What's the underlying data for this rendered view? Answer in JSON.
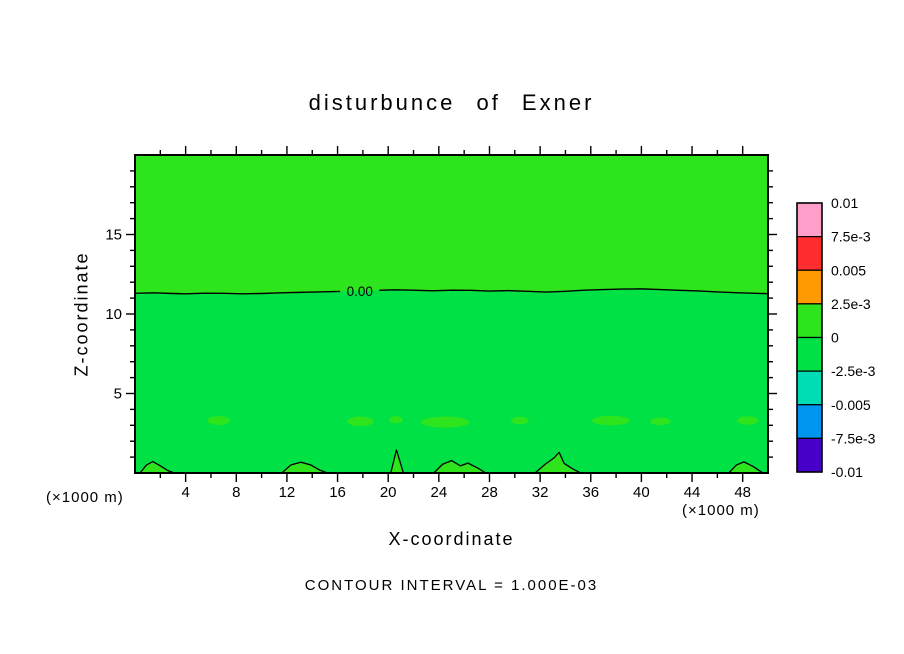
{
  "title": "disturbunce of Exner",
  "axes": {
    "y_label": "Z-coordinate",
    "x_label": "X-coordinate",
    "x_unit_left": "(×1000 m)",
    "x_unit_right": "(×1000 m)"
  },
  "footnote": "CONTOUR INTERVAL = 1.000E-03",
  "chart_data": {
    "type": "contour",
    "title": "disturbunce of Exner",
    "xlabel": "X-coordinate",
    "ylabel": "Z-coordinate",
    "x_unit": "×1000 m",
    "xlim": [
      0,
      50
    ],
    "ylim": [
      0,
      20
    ],
    "x_tick_labels": [
      4,
      8,
      12,
      16,
      20,
      24,
      28,
      32,
      36,
      40,
      44,
      48
    ],
    "x_tick_minor_step": 2,
    "x_tick_major_step": 4,
    "y_tick_labels": [
      5,
      10,
      15
    ],
    "y_tick_minor_step": 1,
    "y_tick_major_step": 5,
    "contour_interval": "1.000E-03",
    "zero_contour_label": "0.00",
    "grid": false,
    "fill": {
      "lower_color": "#00e146",
      "upper_color": "#2ee41c",
      "patch_color": "#2ee41c"
    },
    "zero_contour_main": [
      [
        0,
        11.3
      ],
      [
        1.5,
        11.33
      ],
      [
        3,
        11.29
      ],
      [
        4,
        11.27
      ],
      [
        5.5,
        11.31
      ],
      [
        7,
        11.3
      ],
      [
        8.5,
        11.27
      ],
      [
        10,
        11.29
      ],
      [
        11.5,
        11.33
      ],
      [
        13,
        11.36
      ],
      [
        14.5,
        11.39
      ],
      [
        16.2,
        11.42
      ],
      [
        19.3,
        11.49
      ],
      [
        20.5,
        11.52
      ],
      [
        22,
        11.5
      ],
      [
        23.5,
        11.46
      ],
      [
        25,
        11.5
      ],
      [
        26.5,
        11.49
      ],
      [
        28,
        11.44
      ],
      [
        29.5,
        11.47
      ],
      [
        31,
        11.43
      ],
      [
        32.5,
        11.38
      ],
      [
        34,
        11.43
      ],
      [
        35.5,
        11.5
      ],
      [
        37,
        11.54
      ],
      [
        38.5,
        11.57
      ],
      [
        40,
        11.58
      ],
      [
        41.5,
        11.54
      ],
      [
        43,
        11.49
      ],
      [
        44.5,
        11.45
      ],
      [
        46,
        11.39
      ],
      [
        47.5,
        11.34
      ],
      [
        49,
        11.3
      ],
      [
        50,
        11.28
      ]
    ],
    "label_gap": [
      16.2,
      19.3
    ],
    "label_anchor": {
      "x": 17.75,
      "z": 11.45
    },
    "surface_contours": [
      [
        [
          0.4,
          0
        ],
        [
          0.9,
          0.5
        ],
        [
          1.4,
          0.72
        ],
        [
          2.0,
          0.45
        ],
        [
          2.6,
          0.15
        ],
        [
          3.1,
          0
        ]
      ],
      [
        [
          11.6,
          0
        ],
        [
          12.3,
          0.5
        ],
        [
          13.1,
          0.68
        ],
        [
          13.9,
          0.5
        ],
        [
          14.6,
          0.18
        ],
        [
          15.2,
          0
        ]
      ],
      [
        [
          20.2,
          0
        ],
        [
          20.45,
          0.8
        ],
        [
          20.65,
          1.45
        ],
        [
          20.9,
          0.8
        ],
        [
          21.2,
          0
        ]
      ],
      [
        [
          23.6,
          0
        ],
        [
          24.3,
          0.55
        ],
        [
          25.0,
          0.78
        ],
        [
          25.7,
          0.45
        ],
        [
          26.3,
          0.62
        ],
        [
          27.1,
          0.3
        ],
        [
          27.7,
          0
        ]
      ],
      [
        [
          31.6,
          0
        ],
        [
          32.4,
          0.55
        ],
        [
          33.1,
          0.95
        ],
        [
          33.5,
          1.3
        ],
        [
          33.9,
          0.6
        ],
        [
          34.6,
          0.25
        ],
        [
          35.2,
          0
        ]
      ],
      [
        [
          46.9,
          0
        ],
        [
          47.5,
          0.5
        ],
        [
          48.1,
          0.7
        ],
        [
          48.8,
          0.42
        ],
        [
          49.6,
          0
        ]
      ]
    ],
    "positive_patches": [
      [
        6.6,
        3.3,
        0.9,
        0.28
      ],
      [
        17.8,
        3.25,
        1.05,
        0.3
      ],
      [
        20.6,
        3.35,
        0.55,
        0.22
      ],
      [
        24.5,
        3.2,
        1.9,
        0.35
      ],
      [
        30.4,
        3.3,
        0.7,
        0.24
      ],
      [
        37.6,
        3.3,
        1.5,
        0.3
      ],
      [
        41.5,
        3.25,
        0.8,
        0.24
      ],
      [
        48.4,
        3.3,
        0.85,
        0.26
      ]
    ],
    "colorbar": {
      "value_range": [
        -0.01,
        0.01
      ],
      "levels": [
        0.01,
        0.0075,
        0.005,
        0.0025,
        0,
        -0.0025,
        -0.005,
        -0.0075,
        -0.01
      ],
      "labels": [
        "0.01",
        "7.5e-3",
        "0.005",
        "2.5e-3",
        "0",
        "-2.5e-3",
        "-0.005",
        "-7.5e-3",
        "-0.01"
      ],
      "colors": [
        "#ff9ec8",
        "#ff2d2d",
        "#ff9900",
        "#2ee41c",
        "#00e146",
        "#00dcb4",
        "#0096f0",
        "#4600c8"
      ]
    }
  }
}
